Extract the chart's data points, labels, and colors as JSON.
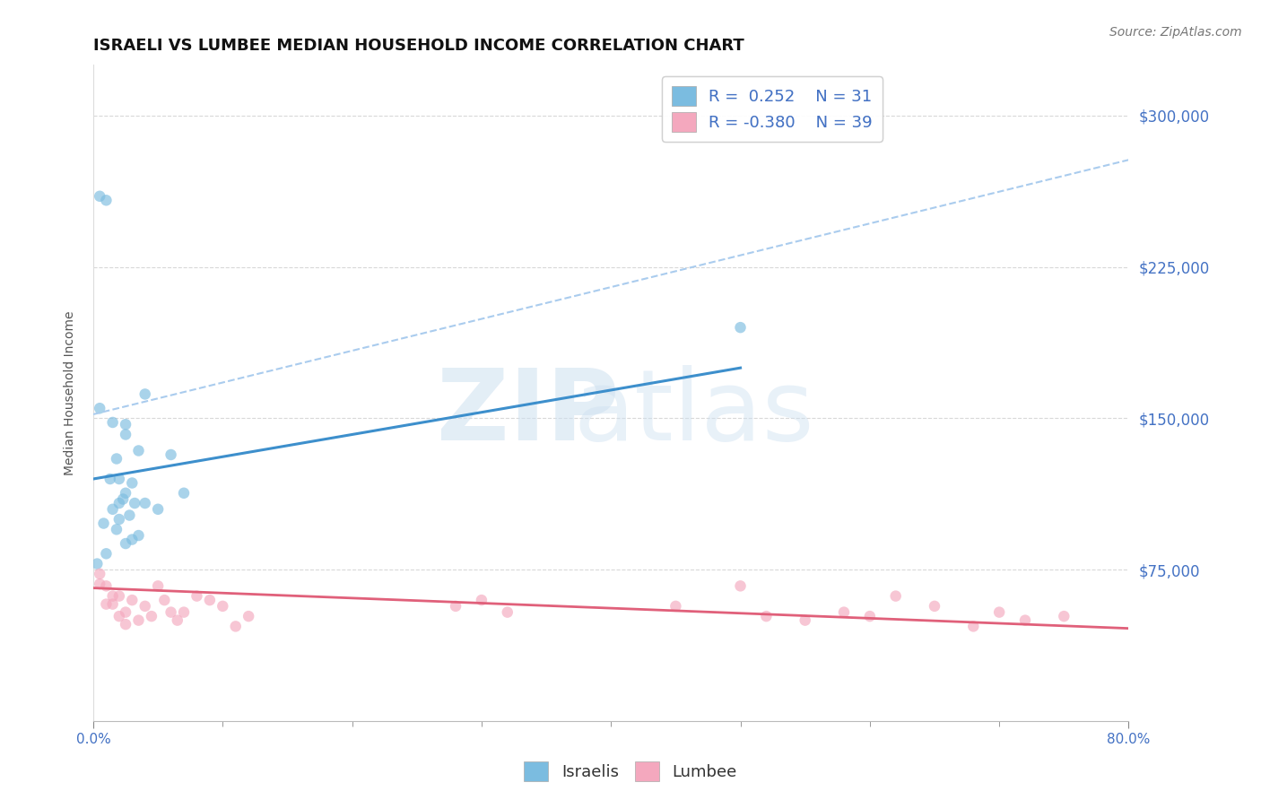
{
  "title": "ISRAELI VS LUMBEE MEDIAN HOUSEHOLD INCOME CORRELATION CHART",
  "source_text": "Source: ZipAtlas.com",
  "ylabel": "Median Household Income",
  "xlim": [
    0,
    0.8
  ],
  "ylim": [
    0,
    325000
  ],
  "yticks": [
    0,
    75000,
    150000,
    225000,
    300000
  ],
  "ytick_labels": [
    "",
    "$75,000",
    "$150,000",
    "$225,000",
    "$300,000"
  ],
  "xtick_minor": [
    0.0,
    0.1,
    0.2,
    0.3,
    0.4,
    0.5,
    0.6,
    0.7,
    0.8
  ],
  "israeli_color": "#7bbce0",
  "lumbee_color": "#f4a8be",
  "israeli_trend_color": "#3d8fcc",
  "lumbee_trend_color": "#e0607a",
  "dashed_line_color": "#aaccee",
  "background_color": "#ffffff",
  "grid_color": "#c8c8c8",
  "legend_R_israeli": "0.252",
  "legend_N_israeli": "31",
  "legend_R_lumbee": "-0.380",
  "legend_N_lumbee": "39",
  "israelis_x": [
    0.02,
    0.03,
    0.005,
    0.01,
    0.015,
    0.025,
    0.02,
    0.01,
    0.015,
    0.005,
    0.025,
    0.035,
    0.025,
    0.04,
    0.025,
    0.04,
    0.035,
    0.06,
    0.07,
    0.05,
    0.03,
    0.018,
    0.013,
    0.023,
    0.032,
    0.028,
    0.008,
    0.018,
    0.5,
    0.003,
    0.02
  ],
  "israelis_y": [
    120000,
    118000,
    260000,
    258000,
    148000,
    142000,
    100000,
    83000,
    105000,
    155000,
    113000,
    92000,
    88000,
    108000,
    147000,
    162000,
    134000,
    132000,
    113000,
    105000,
    90000,
    130000,
    120000,
    110000,
    108000,
    102000,
    98000,
    95000,
    195000,
    78000,
    108000
  ],
  "lumbee_x": [
    0.005,
    0.01,
    0.015,
    0.02,
    0.025,
    0.005,
    0.01,
    0.015,
    0.02,
    0.025,
    0.03,
    0.035,
    0.04,
    0.045,
    0.05,
    0.055,
    0.06,
    0.065,
    0.1,
    0.12,
    0.08,
    0.07,
    0.09,
    0.11,
    0.3,
    0.32,
    0.28,
    0.6,
    0.65,
    0.55,
    0.7,
    0.68,
    0.72,
    0.5,
    0.45,
    0.52,
    0.75,
    0.62,
    0.58
  ],
  "lumbee_y": [
    68000,
    58000,
    62000,
    52000,
    48000,
    73000,
    67000,
    58000,
    62000,
    54000,
    60000,
    50000,
    57000,
    52000,
    67000,
    60000,
    54000,
    50000,
    57000,
    52000,
    62000,
    54000,
    60000,
    47000,
    60000,
    54000,
    57000,
    52000,
    57000,
    50000,
    54000,
    47000,
    50000,
    67000,
    57000,
    52000,
    52000,
    62000,
    54000
  ],
  "israeli_trend_x": [
    0.0,
    0.5
  ],
  "israeli_trend_y": [
    120000,
    175000
  ],
  "lumbee_trend_x": [
    0.0,
    0.8
  ],
  "lumbee_trend_y": [
    66000,
    46000
  ],
  "dashed_trend_x": [
    0.0,
    0.8
  ],
  "dashed_trend_y": [
    152000,
    278000
  ],
  "title_fontsize": 13,
  "axis_label_fontsize": 10,
  "tick_fontsize": 11,
  "legend_fontsize": 13,
  "source_fontsize": 10,
  "marker_size": 9,
  "marker_alpha": 0.65,
  "tick_label_color": "#4472c4",
  "ylabel_color": "#555555"
}
